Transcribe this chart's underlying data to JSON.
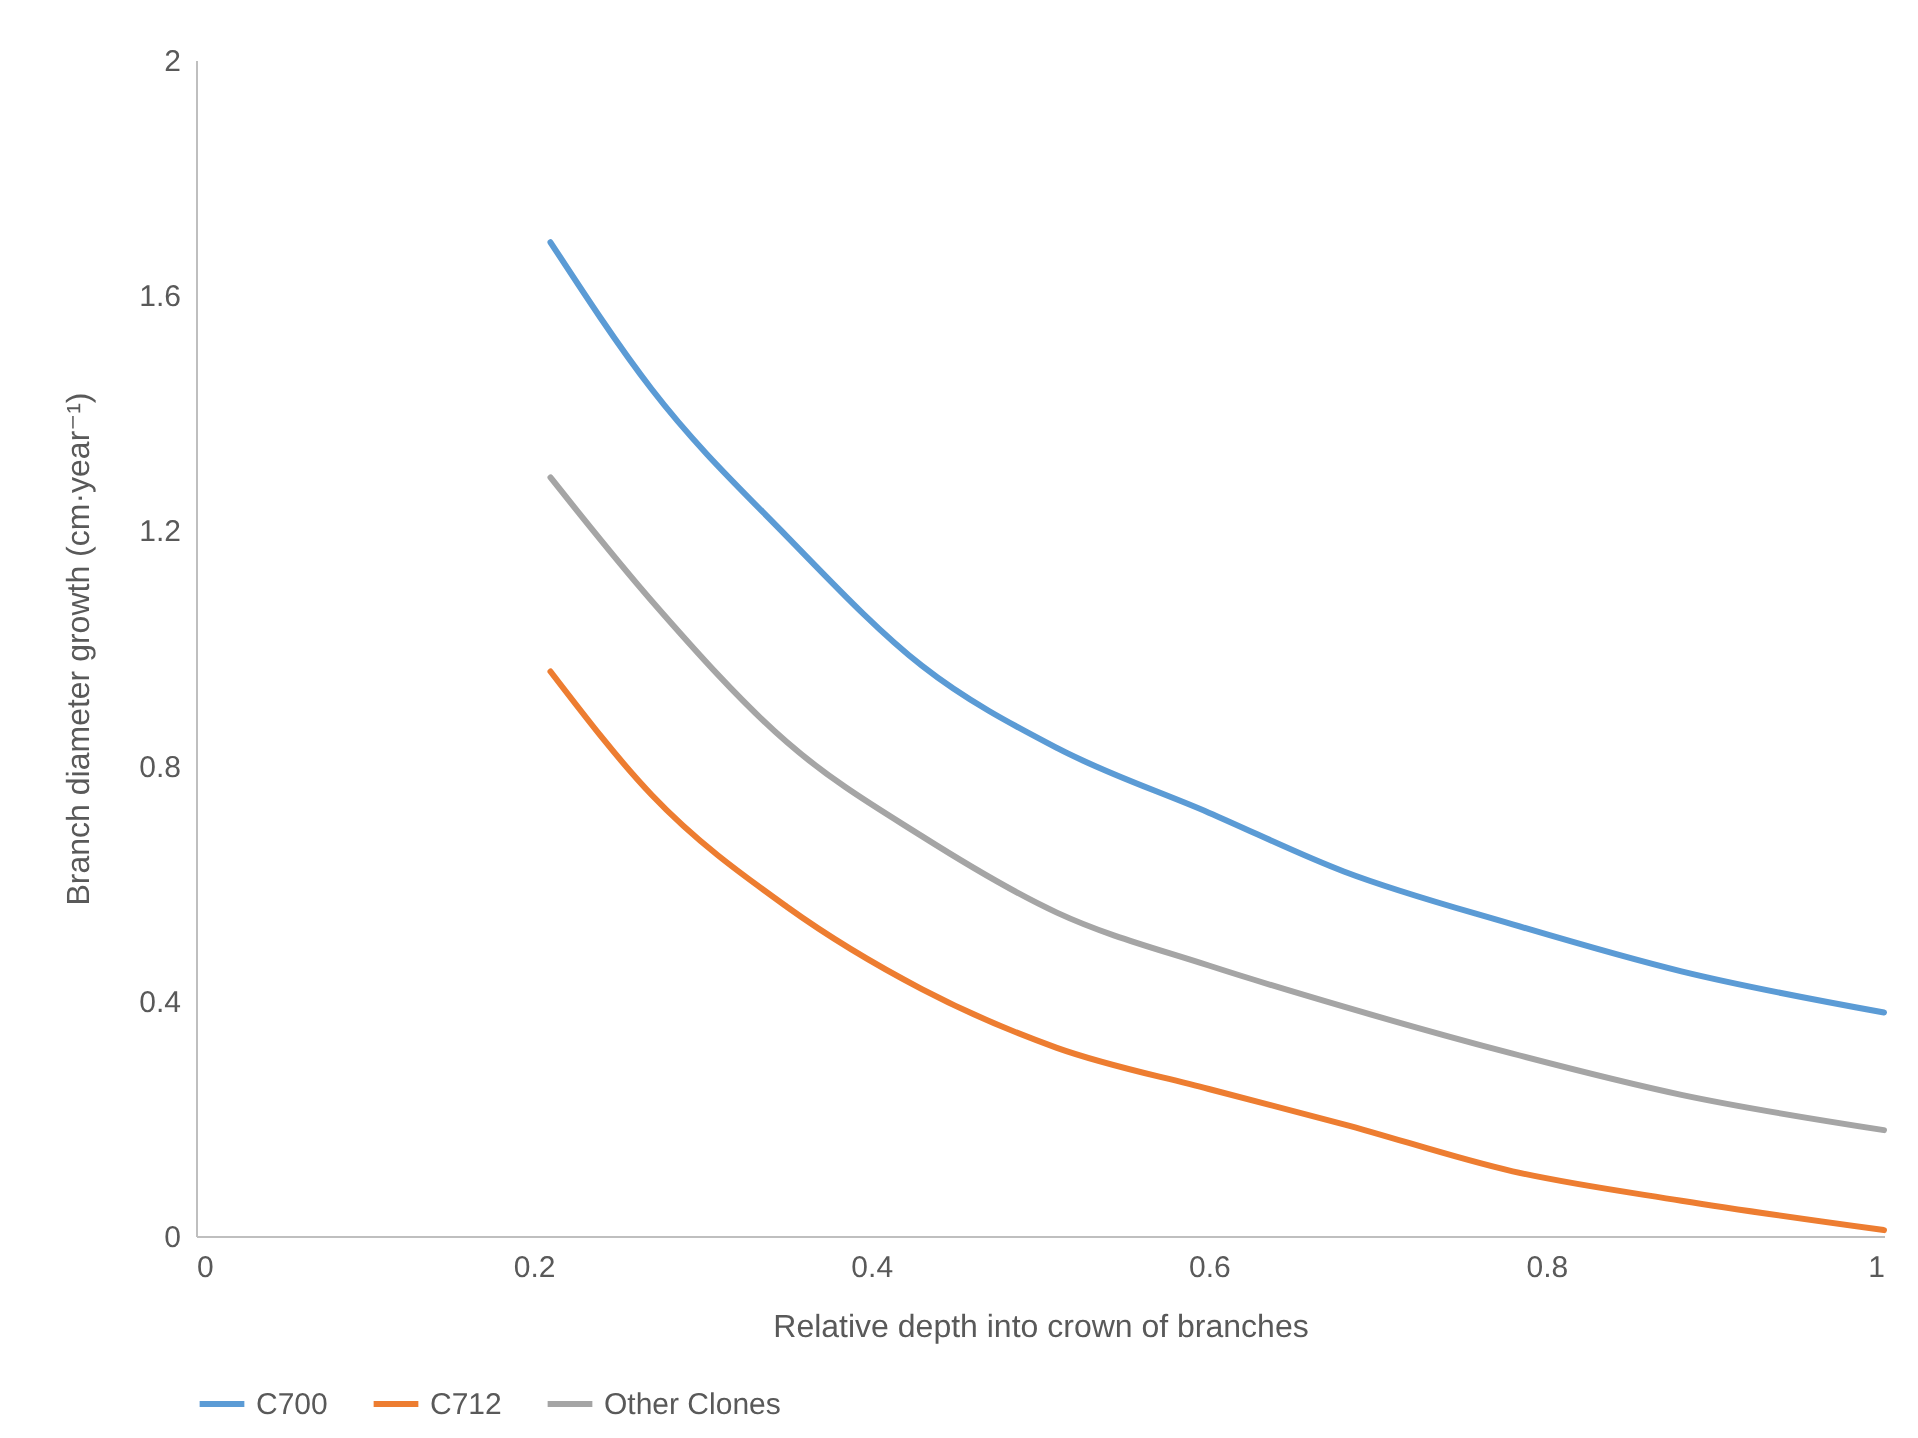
{
  "chart_data": {
    "type": "line",
    "xlabel": "Relative depth into crown of branches",
    "ylabel": "Branch diameter growth (cm·year⁻¹)",
    "x": [
      0.21,
      0.27,
      0.35,
      0.43,
      0.51,
      0.6,
      0.68,
      0.78,
      0.88,
      1.0
    ],
    "series": [
      {
        "name": "C700",
        "color": "#5b9bd5",
        "values": [
          1.69,
          1.44,
          1.19,
          0.97,
          0.83,
          0.72,
          0.62,
          0.53,
          0.45,
          0.38
        ]
      },
      {
        "name": "C712",
        "color": "#ed7d31",
        "values": [
          0.96,
          0.75,
          0.56,
          0.42,
          0.32,
          0.25,
          0.19,
          0.11,
          0.06,
          0.01
        ]
      },
      {
        "name": "Other Clones",
        "color": "#a5a5a5",
        "values": [
          1.29,
          1.08,
          0.84,
          0.68,
          0.55,
          0.46,
          0.39,
          0.31,
          0.24,
          0.18
        ]
      }
    ],
    "xlim": [
      0,
      1
    ],
    "xticks": [
      0,
      0.2,
      0.4,
      0.6,
      0.8,
      1
    ],
    "ylim": [
      0,
      2
    ],
    "yticks": [
      0,
      0.4,
      0.8,
      1.2,
      1.6,
      2
    ],
    "legend": "bottom",
    "marker": "none",
    "line_style": "solid"
  }
}
